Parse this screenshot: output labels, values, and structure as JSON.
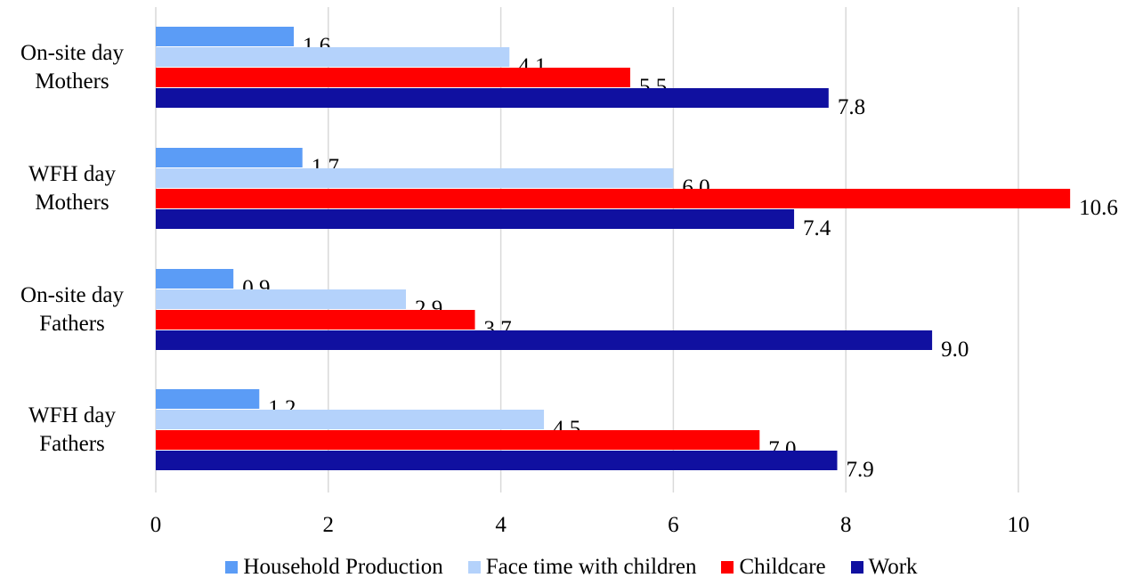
{
  "chart_data": {
    "type": "bar",
    "orientation": "horizontal",
    "categories": [
      [
        "On-site day",
        "Mothers"
      ],
      [
        "WFH day",
        "Mothers"
      ],
      [
        "On-site day",
        "Fathers"
      ],
      [
        "WFH day",
        "Fathers"
      ]
    ],
    "series": [
      {
        "name": "Household Production",
        "color": "#5b9cf6",
        "values": [
          1.6,
          1.7,
          0.9,
          1.2
        ],
        "labels": [
          "1.6",
          "1.7",
          "0.9",
          "1.2"
        ]
      },
      {
        "name": "Face time with children",
        "color": "#b4d2fb",
        "values": [
          4.1,
          6.0,
          2.9,
          4.5
        ],
        "labels": [
          "4.1",
          "6.0",
          "2.9",
          "4.5"
        ]
      },
      {
        "name": "Childcare",
        "color": "#ff0000",
        "values": [
          5.5,
          10.6,
          3.7,
          7.0
        ],
        "labels": [
          "5.5",
          "10.6",
          "3.7",
          "7.0"
        ]
      },
      {
        "name": "Work",
        "color": "#1010a0",
        "values": [
          7.8,
          7.4,
          9.0,
          7.9
        ],
        "labels": [
          "7.8",
          "7.4",
          "9.0",
          "7.9"
        ]
      }
    ],
    "xlim": [
      0,
      10.6
    ],
    "xticks": [
      0,
      2,
      4,
      6,
      8,
      10
    ],
    "grid": true,
    "legend_position": "bottom",
    "title": "",
    "xlabel": "",
    "ylabel": ""
  }
}
